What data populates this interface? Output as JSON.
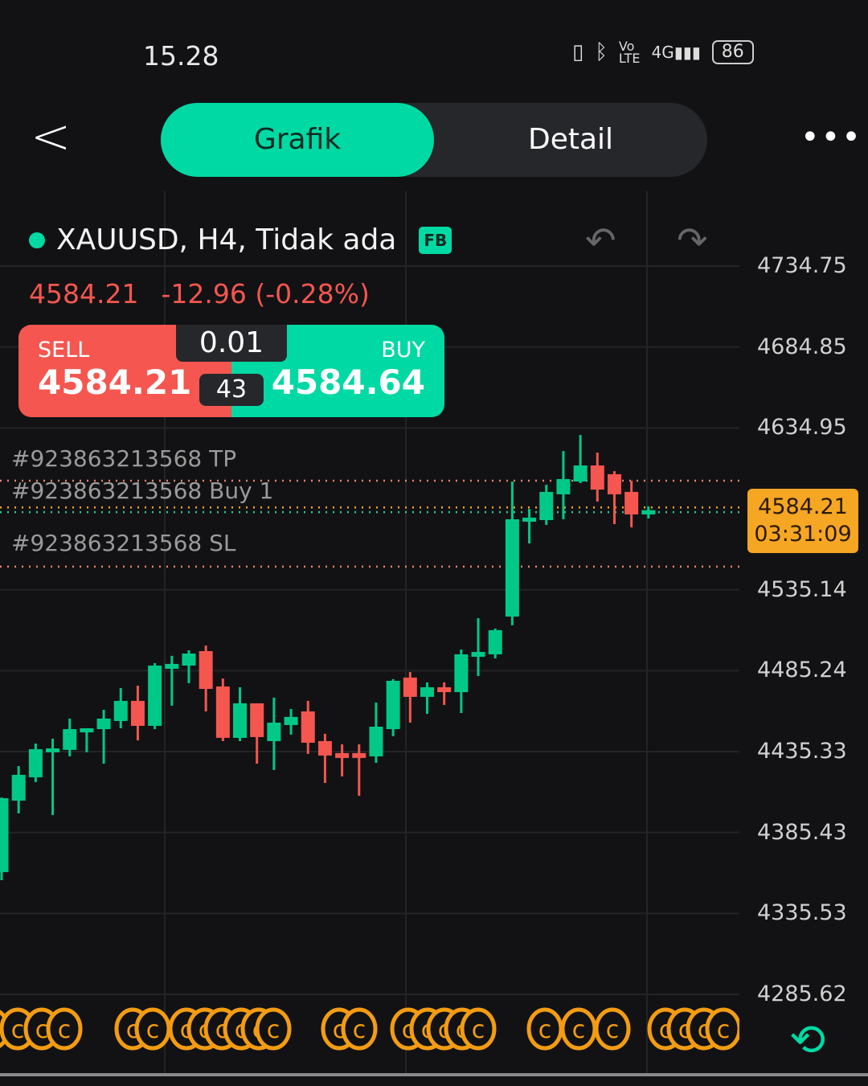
{
  "status_bar": {
    "time": "15.28",
    "icons": [
      "vibrate-icon",
      "bluetooth-icon",
      "volte-icon",
      "4g-signal-icon"
    ],
    "battery": "86"
  },
  "header": {
    "tabs": [
      {
        "label": "Grafik",
        "active": true
      },
      {
        "label": "Detail",
        "active": false
      }
    ]
  },
  "symbol": {
    "title": "XAUUSD, H4, Tidak ada",
    "badge": "FB",
    "price": "4584.21",
    "change": "-12.96 (-0.28%)"
  },
  "trade": {
    "sell_label": "SELL",
    "sell_price": "4584.21",
    "buy_label": "BUY",
    "buy_price": "4584.64",
    "volume": "0.01",
    "spread": "43"
  },
  "orders": {
    "tp": "#923863213568 TP",
    "entry": "#923863213568 Buy 1",
    "sl": "#923863213568 SL"
  },
  "price_label": {
    "price": "4584.21",
    "countdown": "03:31:09"
  },
  "colors": {
    "accent": "#00d9a3",
    "down": "#f5564f",
    "up": "#00c987",
    "price_box": "#f5a623",
    "marker": "#f39c12"
  },
  "chart_data": {
    "type": "candlestick",
    "ylim": [
      4285.62,
      4734.75
    ],
    "yticks": [
      "4734.75",
      "4684.85",
      "4634.95",
      "4535.14",
      "4485.24",
      "4435.33",
      "4385.43",
      "4335.53",
      "4285.62"
    ],
    "ytick_values": [
      4734.75,
      4684.85,
      4634.95,
      4535.14,
      4485.24,
      4435.33,
      4385.43,
      4335.53,
      4285.62
    ],
    "lines": {
      "tp": 4602.4,
      "bid": 4585.9,
      "entry": 4583.0,
      "sl": 4549.4
    },
    "candles": [
      [
        4361.0,
        4407.0,
        4356.0,
        4406.6
      ],
      [
        4405.1,
        4426.4,
        4397.2,
        4421.0
      ],
      [
        4419.5,
        4440.3,
        4416.5,
        4436.8
      ],
      [
        4434.9,
        4443.3,
        4396.2,
        4437.3
      ],
      [
        4436.4,
        4455.7,
        4432.4,
        4449.2
      ],
      [
        4447.2,
        4449.7,
        4434.9,
        4449.7
      ],
      [
        4449.2,
        4461.1,
        4427.9,
        4455.7
      ],
      [
        4454.2,
        4474.5,
        4449.7,
        4466.6
      ],
      [
        4466.6,
        4476.0,
        4442.3,
        4451.2
      ],
      [
        4451.2,
        4489.9,
        4449.2,
        4488.4
      ],
      [
        4486.4,
        4494.4,
        4463.6,
        4489.4
      ],
      [
        4488.4,
        4497.8,
        4477.5,
        4495.8
      ],
      [
        4497.3,
        4500.7,
        4460.1,
        4474.0
      ],
      [
        4475.5,
        4480.4,
        4441.8,
        4443.8
      ],
      [
        4443.8,
        4475.0,
        4441.8,
        4465.1
      ],
      [
        4465.1,
        4465.1,
        4427.9,
        4444.3
      ],
      [
        4441.8,
        4468.6,
        4424.0,
        4453.2
      ],
      [
        4451.7,
        4461.6,
        4445.8,
        4456.7
      ],
      [
        4460.1,
        4466.6,
        4433.9,
        4440.8
      ],
      [
        4441.8,
        4446.3,
        4416.0,
        4432.9
      ],
      [
        4434.4,
        4439.8,
        4420.0,
        4431.4
      ],
      [
        4434.4,
        4439.8,
        4408.1,
        4431.4
      ],
      [
        4432.4,
        4465.6,
        4428.4,
        4450.7
      ],
      [
        4449.2,
        4480.0,
        4444.8,
        4479.0
      ],
      [
        4481.0,
        4484.4,
        4453.2,
        4469.1
      ],
      [
        4469.1,
        4478.0,
        4458.6,
        4475.0
      ],
      [
        4475.0,
        4478.0,
        4464.1,
        4472.0
      ],
      [
        4472.0,
        4498.3,
        4459.1,
        4495.3
      ],
      [
        4493.8,
        4517.6,
        4481.9,
        4496.8
      ],
      [
        4495.3,
        4511.2,
        4492.8,
        4510.2
      ],
      [
        4518.6,
        4601.9,
        4513.2,
        4578.6
      ],
      [
        4577.1,
        4585.0,
        4563.7,
        4579.6
      ],
      [
        4578.1,
        4599.9,
        4575.1,
        4595.5
      ],
      [
        4594.0,
        4620.7,
        4578.6,
        4603.4
      ],
      [
        4601.9,
        4630.6,
        4600.9,
        4611.8
      ],
      [
        4611.8,
        4619.7,
        4589.5,
        4596.9
      ],
      [
        4606.4,
        4608.3,
        4575.6,
        4594.0
      ],
      [
        4595.5,
        4602.4,
        4573.6,
        4581.6
      ],
      [
        4581.6,
        4586.6,
        4579.1,
        4584.21
      ]
    ]
  }
}
